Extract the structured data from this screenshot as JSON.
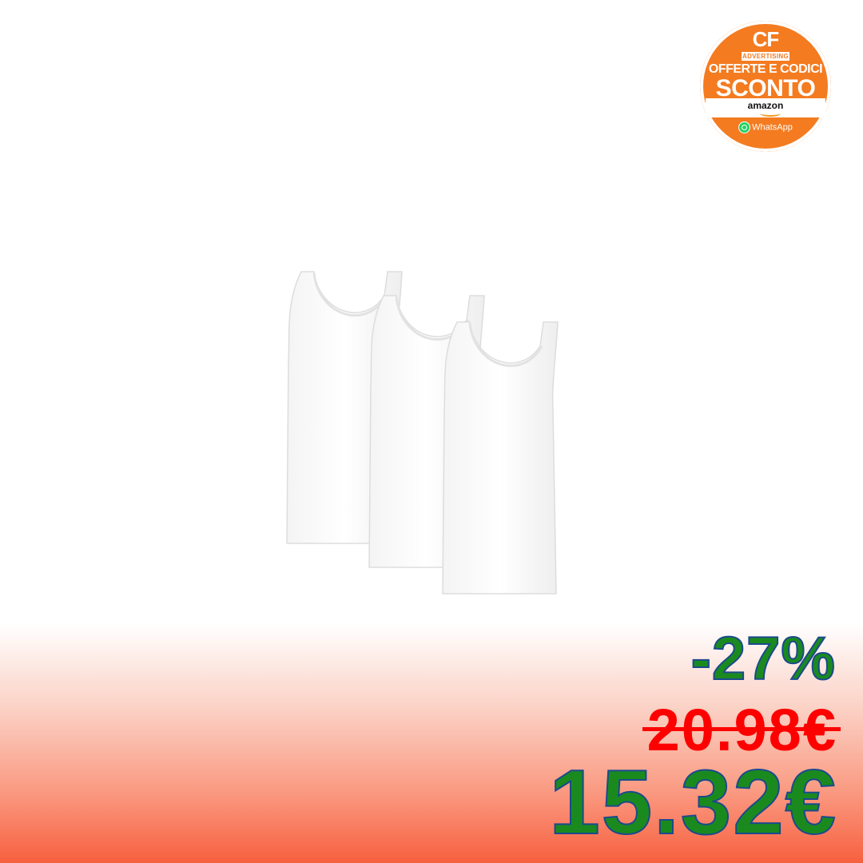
{
  "badge": {
    "brand": "CF",
    "brand_sub": "ADVERTISING",
    "line1": "OFFERTE E CODICI",
    "line2": "SCONTO",
    "store": "amazon",
    "contact": "WhatsApp",
    "color": "#f47b20"
  },
  "product": {
    "icon": "white-tank-tops-pack-of-3"
  },
  "pricing": {
    "discount": "-27%",
    "old_price": "20.98€",
    "new_price": "15.32€",
    "discount_color": "#1a8a1f",
    "old_price_color": "#ff0000",
    "new_price_color": "#1a8a1f"
  }
}
